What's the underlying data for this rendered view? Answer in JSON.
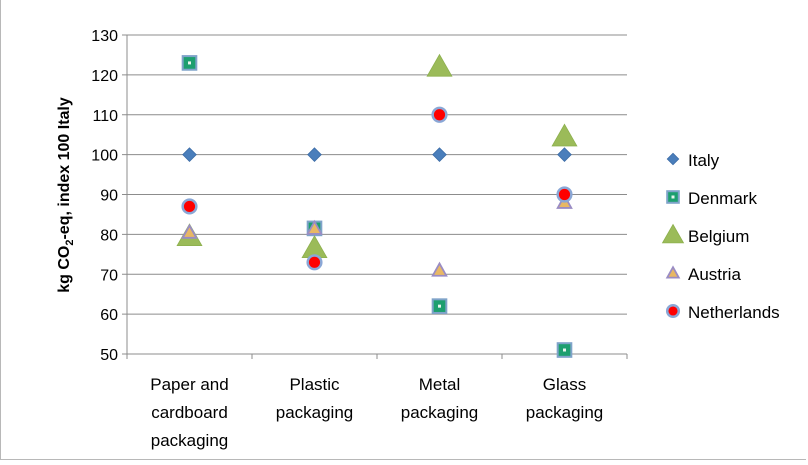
{
  "chart_data": {
    "type": "scatter",
    "title": "",
    "ylabel_main": "kg CO",
    "ylabel_sub": "2",
    "ylabel_rest": "-eq, index 100 Italy",
    "ylim": [
      50,
      130
    ],
    "yticks": [
      "50",
      "60",
      "70",
      "80",
      "90",
      "100",
      "110",
      "120",
      "130"
    ],
    "categories": [
      [
        "Paper and",
        "cardboard",
        "packaging"
      ],
      [
        "Plastic",
        "packaging"
      ],
      [
        "Metal",
        "packaging"
      ],
      [
        "Glass",
        "packaging"
      ]
    ],
    "grid": "horizontal",
    "legend_position": "right",
    "series": [
      {
        "name": "Italy",
        "marker": "diamond",
        "color": "#4a7ebb",
        "values": [
          100,
          100,
          100,
          100
        ]
      },
      {
        "name": "Denmark",
        "marker": "square",
        "color": "#1d9f6f",
        "values": [
          123,
          81.5,
          62,
          51
        ]
      },
      {
        "name": "Belgium",
        "marker": "triangle",
        "color": "#9bbb59",
        "values": [
          79.5,
          76.5,
          122,
          104.5
        ]
      },
      {
        "name": "Austria",
        "marker": "triangle-outline",
        "color": "#e8b864",
        "values": [
          80.5,
          81.5,
          71,
          88
        ]
      },
      {
        "name": "Netherlands",
        "marker": "circle",
        "color": "#ff0000",
        "values": [
          87,
          73,
          110,
          90
        ]
      }
    ]
  }
}
